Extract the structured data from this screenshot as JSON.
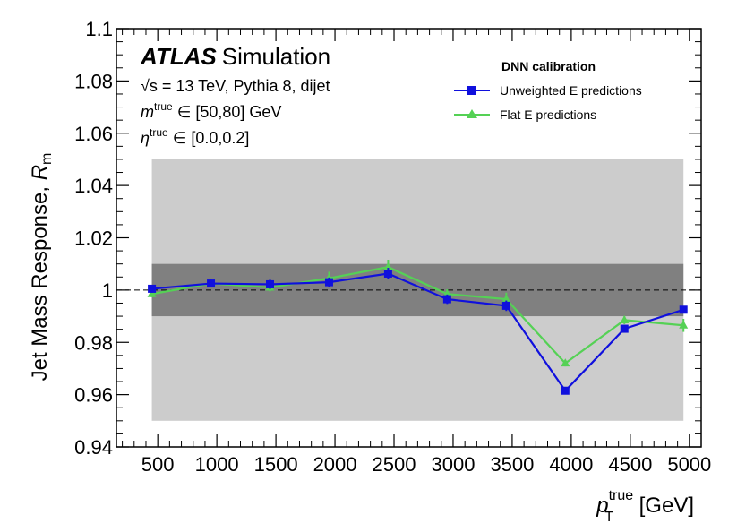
{
  "chart_data": {
    "type": "line",
    "title": "",
    "xlabel": {
      "main": "p",
      "sup": "true",
      "sub": "T",
      "unit": " [GeV]"
    },
    "ylabel": {
      "prefix": "Jet Mass Response, ",
      "main": "R",
      "sub": "m"
    },
    "xlim": [
      150,
      5100
    ],
    "ylim": [
      0.94,
      1.1
    ],
    "x_ticks": [
      500,
      1000,
      1500,
      2000,
      2500,
      3000,
      3500,
      4000,
      4500,
      5000
    ],
    "x_tick_labels": [
      "500",
      "1000",
      "1500",
      "2000",
      "2500",
      "3000",
      "3500",
      "4000",
      "4500",
      "5000"
    ],
    "y_ticks": [
      0.94,
      0.96,
      0.98,
      1.0,
      1.02,
      1.04,
      1.06,
      1.08,
      1.1
    ],
    "y_tick_labels": [
      "0.94",
      "0.96",
      "0.98",
      "1",
      "1.02",
      "1.04",
      "1.06",
      "1.08",
      "1.1"
    ],
    "bands": [
      {
        "name": "outer-band",
        "x_range": [
          450,
          4950
        ],
        "y_range": [
          0.95,
          1.05
        ],
        "color": "#cccccc"
      },
      {
        "name": "inner-band",
        "x_range": [
          450,
          4950
        ],
        "y_range": [
          0.99,
          1.01
        ],
        "color": "#808080"
      }
    ],
    "reference_line": {
      "y": 1.0,
      "style": "dashed"
    },
    "series": [
      {
        "name": "Unweighted E predictions",
        "color": "#1010dd",
        "marker": "square",
        "x": [
          450,
          950,
          1450,
          1950,
          2450,
          2950,
          3450,
          3950,
          4450,
          4950
        ],
        "values": [
          1.0005,
          1.0025,
          1.0022,
          1.003,
          1.0063,
          0.9965,
          0.994,
          0.9615,
          0.9852,
          0.9925
        ],
        "errors": [
          0.0015,
          0.0015,
          0.0018,
          0.0018,
          0.0022,
          0.0018,
          0.002,
          0.0012,
          0.0015,
          0.0012
        ]
      },
      {
        "name": "Flat E predictions",
        "color": "#55d155",
        "marker": "triangle",
        "x": [
          450,
          950,
          1450,
          1950,
          2450,
          2950,
          3450,
          3950,
          4450,
          4950
        ],
        "values": [
          0.9985,
          1.0025,
          1.001,
          1.0045,
          1.0088,
          0.9985,
          0.9965,
          0.972,
          0.9885,
          0.9865
        ],
        "errors": [
          0.0012,
          0.0012,
          0.0015,
          0.0025,
          0.0028,
          0.0018,
          0.0025,
          0.0012,
          0.0015,
          0.0025
        ]
      }
    ],
    "legend": {
      "title": "DNN calibration",
      "position": "top-right"
    },
    "annotations": {
      "atlas": "ATLAS",
      "simulation": "Simulation",
      "energy_line_sqrt": "√s",
      "energy_line_rest": " = 13 TeV, Pythia 8, dijet",
      "mass_symbol": "m",
      "mass_sup": "true",
      "mass_rest": " ∈ [50,80] GeV",
      "eta_symbol": "η",
      "eta_sup": "true",
      "eta_rest": " ∈ [0.0,0.2]"
    }
  }
}
